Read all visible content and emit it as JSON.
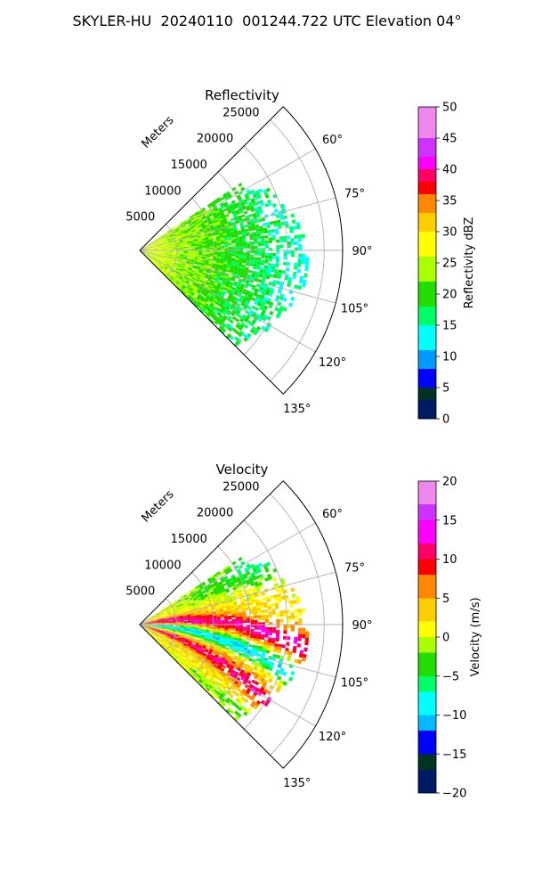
{
  "figure": {
    "title": "SKYLER-HU  20240110  001244.722 UTC Elevation 04°"
  },
  "chart_data": [
    {
      "type": "heatmap",
      "subtype": "polar-sector (radar PPI)",
      "title": "Reflectivity",
      "radial_label": "Meters",
      "radial_ticks": [
        "5000",
        "10000",
        "15000",
        "20000",
        "25000"
      ],
      "radial_range": [
        0,
        27500
      ],
      "angular_ticks": [
        "60°",
        "75°",
        "90°",
        "105°",
        "120°",
        "135°"
      ],
      "angular_range_deg": [
        45,
        135
      ],
      "grid": true,
      "colorbar": {
        "label": "Reflectivity dBZ",
        "ticks": [
          "0",
          "5",
          "10",
          "15",
          "20",
          "25",
          "30",
          "35",
          "40",
          "45",
          "50"
        ],
        "range": [
          0,
          50
        ],
        "stops": [
          [
            0,
            "#001a66"
          ],
          [
            3,
            "#003322"
          ],
          [
            5,
            "#0000ff"
          ],
          [
            8,
            "#0099ff"
          ],
          [
            11,
            "#00ffff"
          ],
          [
            15,
            "#00ff66"
          ],
          [
            18,
            "#22dd00"
          ],
          [
            22,
            "#aaff00"
          ],
          [
            26,
            "#ffff00"
          ],
          [
            30,
            "#ffcc00"
          ],
          [
            33,
            "#ff8800"
          ],
          [
            36,
            "#ff0000"
          ],
          [
            38,
            "#ff0066"
          ],
          [
            40,
            "#ff00ff"
          ],
          [
            42,
            "#cc33ff"
          ],
          [
            45,
            "#ee88ee"
          ],
          [
            50,
            "#fff0ff"
          ]
        ]
      }
    },
    {
      "type": "heatmap",
      "subtype": "polar-sector (radar PPI)",
      "title": "Velocity",
      "radial_label": "Meters",
      "radial_ticks": [
        "5000",
        "10000",
        "15000",
        "20000",
        "25000"
      ],
      "radial_range": [
        0,
        27500
      ],
      "angular_ticks": [
        "60°",
        "75°",
        "90°",
        "105°",
        "120°",
        "135°"
      ],
      "angular_range_deg": [
        45,
        135
      ],
      "grid": true,
      "colorbar": {
        "label": "Velocity (m/s)",
        "ticks": [
          "−20",
          "−15",
          "−10",
          "−5",
          "0",
          "5",
          "10",
          "15",
          "20"
        ],
        "range": [
          -20,
          20
        ],
        "stops": [
          [
            -20,
            "#001a66"
          ],
          [
            -17,
            "#003322"
          ],
          [
            -15,
            "#0000ff"
          ],
          [
            -12,
            "#00bbff"
          ],
          [
            -10,
            "#00ffff"
          ],
          [
            -7,
            "#00ff66"
          ],
          [
            -5,
            "#22dd00"
          ],
          [
            -2,
            "#aaff00"
          ],
          [
            0,
            "#ffff00"
          ],
          [
            2,
            "#ffcc00"
          ],
          [
            5,
            "#ff8800"
          ],
          [
            8,
            "#ff0000"
          ],
          [
            10,
            "#ff0066"
          ],
          [
            12,
            "#ff00ff"
          ],
          [
            15,
            "#cc33ff"
          ],
          [
            17,
            "#ee88ee"
          ],
          [
            20,
            "#fff0ff"
          ]
        ]
      }
    }
  ]
}
